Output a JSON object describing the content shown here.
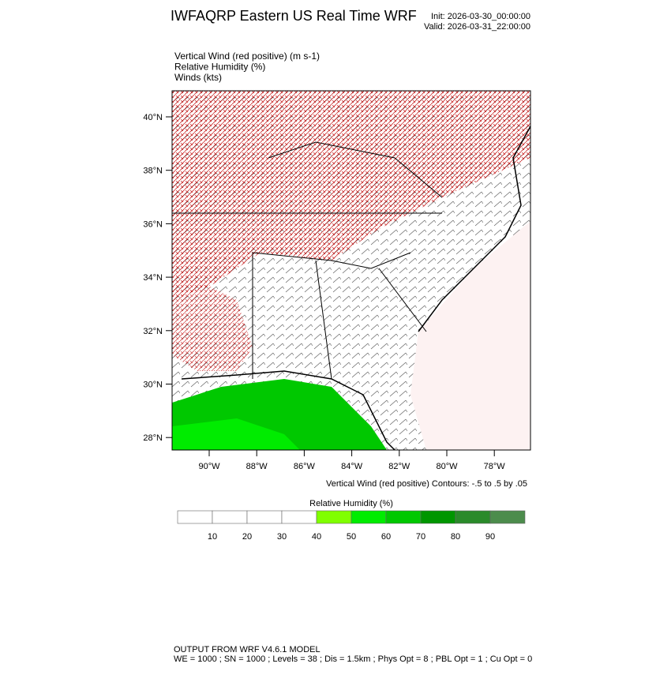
{
  "header": {
    "title": "IWFAQRP Eastern US Real Time WRF",
    "init": "Init: 2026-03-30_00:00:00",
    "valid": "Valid: 2026-03-31_22:00:00"
  },
  "fields": [
    "Vertical Wind (red positive)   (m s-1)",
    "Relative Humidity   (%)",
    "Winds   (kts)"
  ],
  "map": {
    "lat_labels": [
      "40°N",
      "38°N",
      "36°N",
      "34°N",
      "32°N",
      "30°N",
      "28°N"
    ],
    "lon_labels": [
      "90°W",
      "88°W",
      "86°W",
      "84°W",
      "82°W",
      "80°W",
      "78°W"
    ],
    "contour_note": "Vertical Wind (red positive) Contours: -.5 to .5 by .05"
  },
  "colorbar": {
    "title": "Relative Humidity  (%)",
    "labels": [
      "10",
      "20",
      "30",
      "40",
      "50",
      "60",
      "70",
      "80",
      "90"
    ],
    "colors": [
      "#ffffff",
      "#ffffff",
      "#ffffff",
      "#ffffff",
      "#80ff00",
      "#00ec00",
      "#00c800",
      "#009600",
      "#2a8a2a",
      "#4c8c4c"
    ]
  },
  "footer": [
    "OUTPUT FROM WRF V4.6.1 MODEL",
    "WE = 1000 ; SN = 1000 ; Levels = 38 ; Dis = 1.5km ; Phys Opt = 8 ; PBL Opt = 1 ; Cu Opt = 0"
  ]
}
